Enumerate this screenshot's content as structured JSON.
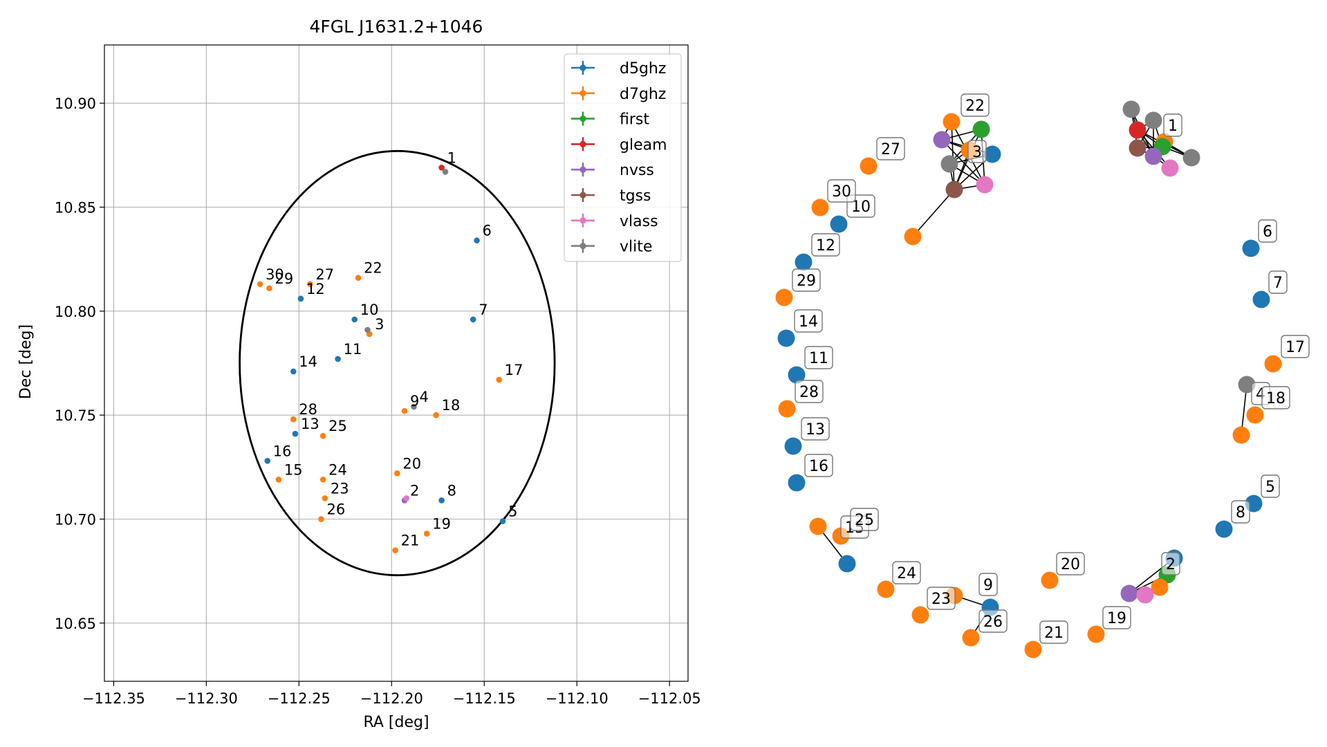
{
  "colors": {
    "d5ghz": "#1f77b4",
    "d7ghz": "#ff7f0e",
    "first": "#2ca02c",
    "gleam": "#d62728",
    "nvss": "#9467bd",
    "tgss": "#8c564b",
    "vlass": "#e377c2",
    "vlite": "#7f7f7f"
  },
  "chart_data": [
    {
      "type": "scatter",
      "title": "4FGL J1631.2+1046",
      "xlabel": "RA [deg]",
      "ylabel": "Dec [deg]",
      "xlim": [
        -112.355,
        -112.04
      ],
      "ylim": [
        10.622,
        10.928
      ],
      "xticks": [
        -112.35,
        -112.3,
        -112.25,
        -112.2,
        -112.15,
        -112.1,
        -112.05
      ],
      "xtick_labels": [
        "−112.35",
        "−112.30",
        "−112.25",
        "−112.20",
        "−112.15",
        "−112.10",
        "−112.05"
      ],
      "yticks": [
        10.65,
        10.7,
        10.75,
        10.8,
        10.85,
        10.9
      ],
      "ytick_labels": [
        "10.65",
        "10.70",
        "10.75",
        "10.80",
        "10.85",
        "10.90"
      ],
      "grid": true,
      "legend": "top-right",
      "legend_entries": [
        "d5ghz",
        "d7ghz",
        "first",
        "gleam",
        "nvss",
        "tgss",
        "vlass",
        "vlite"
      ],
      "ellipse": {
        "center": [
          -112.197,
          10.775
        ],
        "ra_halfwidth": 0.085,
        "dec_halfheight": 0.102
      },
      "points": [
        {
          "label": "1",
          "catalog": "gleam",
          "ra": -112.173,
          "dec": 10.869
        },
        {
          "label": "1",
          "catalog": "vlite",
          "ra": -112.171,
          "dec": 10.867
        },
        {
          "label": "2",
          "catalog": "nvss",
          "ra": -112.193,
          "dec": 10.709
        },
        {
          "label": "2",
          "catalog": "vlass",
          "ra": -112.192,
          "dec": 10.71
        },
        {
          "label": "3",
          "catalog": "d7ghz",
          "ra": -112.212,
          "dec": 10.789
        },
        {
          "label": "3",
          "catalog": "vlite",
          "ra": -112.213,
          "dec": 10.791
        },
        {
          "label": "4",
          "catalog": "vlite",
          "ra": -112.188,
          "dec": 10.754
        },
        {
          "label": "5",
          "catalog": "d5ghz",
          "ra": -112.14,
          "dec": 10.699
        },
        {
          "label": "6",
          "catalog": "d5ghz",
          "ra": -112.154,
          "dec": 10.834
        },
        {
          "label": "7",
          "catalog": "d5ghz",
          "ra": -112.156,
          "dec": 10.796
        },
        {
          "label": "8",
          "catalog": "d5ghz",
          "ra": -112.173,
          "dec": 10.709
        },
        {
          "label": "9",
          "catalog": "d7ghz",
          "ra": -112.193,
          "dec": 10.752
        },
        {
          "label": "10",
          "catalog": "d5ghz",
          "ra": -112.22,
          "dec": 10.796
        },
        {
          "label": "11",
          "catalog": "d5ghz",
          "ra": -112.229,
          "dec": 10.777
        },
        {
          "label": "12",
          "catalog": "d5ghz",
          "ra": -112.249,
          "dec": 10.806
        },
        {
          "label": "13",
          "catalog": "d5ghz",
          "ra": -112.252,
          "dec": 10.741
        },
        {
          "label": "14",
          "catalog": "d5ghz",
          "ra": -112.253,
          "dec": 10.771
        },
        {
          "label": "15",
          "catalog": "d7ghz",
          "ra": -112.261,
          "dec": 10.719
        },
        {
          "label": "16",
          "catalog": "d5ghz",
          "ra": -112.267,
          "dec": 10.728
        },
        {
          "label": "17",
          "catalog": "d7ghz",
          "ra": -112.142,
          "dec": 10.767
        },
        {
          "label": "18",
          "catalog": "d7ghz",
          "ra": -112.176,
          "dec": 10.75
        },
        {
          "label": "19",
          "catalog": "d7ghz",
          "ra": -112.181,
          "dec": 10.693
        },
        {
          "label": "20",
          "catalog": "d7ghz",
          "ra": -112.197,
          "dec": 10.722
        },
        {
          "label": "21",
          "catalog": "d7ghz",
          "ra": -112.198,
          "dec": 10.685
        },
        {
          "label": "22",
          "catalog": "d7ghz",
          "ra": -112.218,
          "dec": 10.816
        },
        {
          "label": "23",
          "catalog": "d7ghz",
          "ra": -112.236,
          "dec": 10.71
        },
        {
          "label": "24",
          "catalog": "d7ghz",
          "ra": -112.237,
          "dec": 10.719
        },
        {
          "label": "25",
          "catalog": "d7ghz",
          "ra": -112.237,
          "dec": 10.74
        },
        {
          "label": "26",
          "catalog": "d7ghz",
          "ra": -112.238,
          "dec": 10.7
        },
        {
          "label": "27",
          "catalog": "d7ghz",
          "ra": -112.244,
          "dec": 10.813
        },
        {
          "label": "28",
          "catalog": "d7ghz",
          "ra": -112.253,
          "dec": 10.748
        },
        {
          "label": "29",
          "catalog": "d7ghz",
          "ra": -112.266,
          "dec": 10.811
        },
        {
          "label": "30",
          "catalog": "d7ghz",
          "ra": -112.271,
          "dec": 10.813
        }
      ]
    },
    {
      "type": "network",
      "nodes": [
        {
          "id": "1-vlite-a",
          "catalog": "vlite",
          "pos": [
            0.533,
            0.153
          ]
        },
        {
          "id": "1-vlite-b",
          "catalog": "vlite",
          "pos": [
            0.571,
            0.163
          ]
        },
        {
          "id": "1-gleam",
          "catalog": "gleam",
          "pos": [
            0.543,
            0.18
          ]
        },
        {
          "id": "1-first",
          "catalog": "first",
          "pos": [
            0.598,
            0.203
          ]
        },
        {
          "id": "1-d7",
          "catalog": "d7ghz",
          "pos": [
            0.58,
            0.21
          ]
        },
        {
          "id": "1-tgss",
          "catalog": "tgss",
          "pos": [
            0.547,
            0.207
          ]
        },
        {
          "id": "1-nvss",
          "catalog": "nvss",
          "pos": [
            0.584,
            0.217
          ]
        },
        {
          "id": "1-vlite-c",
          "catalog": "vlite",
          "pos": [
            0.644,
            0.215
          ]
        },
        {
          "id": "1-vlass",
          "catalog": "vlass",
          "pos": [
            0.607,
            0.23
          ]
        },
        {
          "id": "22",
          "catalog": "d7ghz",
          "pos": [
            0.0,
            0.0
          ]
        },
        {
          "id": "2-a",
          "catalog": "d5ghz",
          "pos": [
            0.0,
            0.0
          ]
        }
      ],
      "labels": [
        "1",
        "2",
        "3",
        "4",
        "5",
        "6",
        "7",
        "8",
        "9",
        "10",
        "11",
        "12",
        "13",
        "14",
        "15",
        "16",
        "17",
        "18",
        "19",
        "20",
        "21",
        "22",
        "23",
        "24",
        "25",
        "26",
        "27",
        "28",
        "29",
        "30"
      ]
    }
  ]
}
